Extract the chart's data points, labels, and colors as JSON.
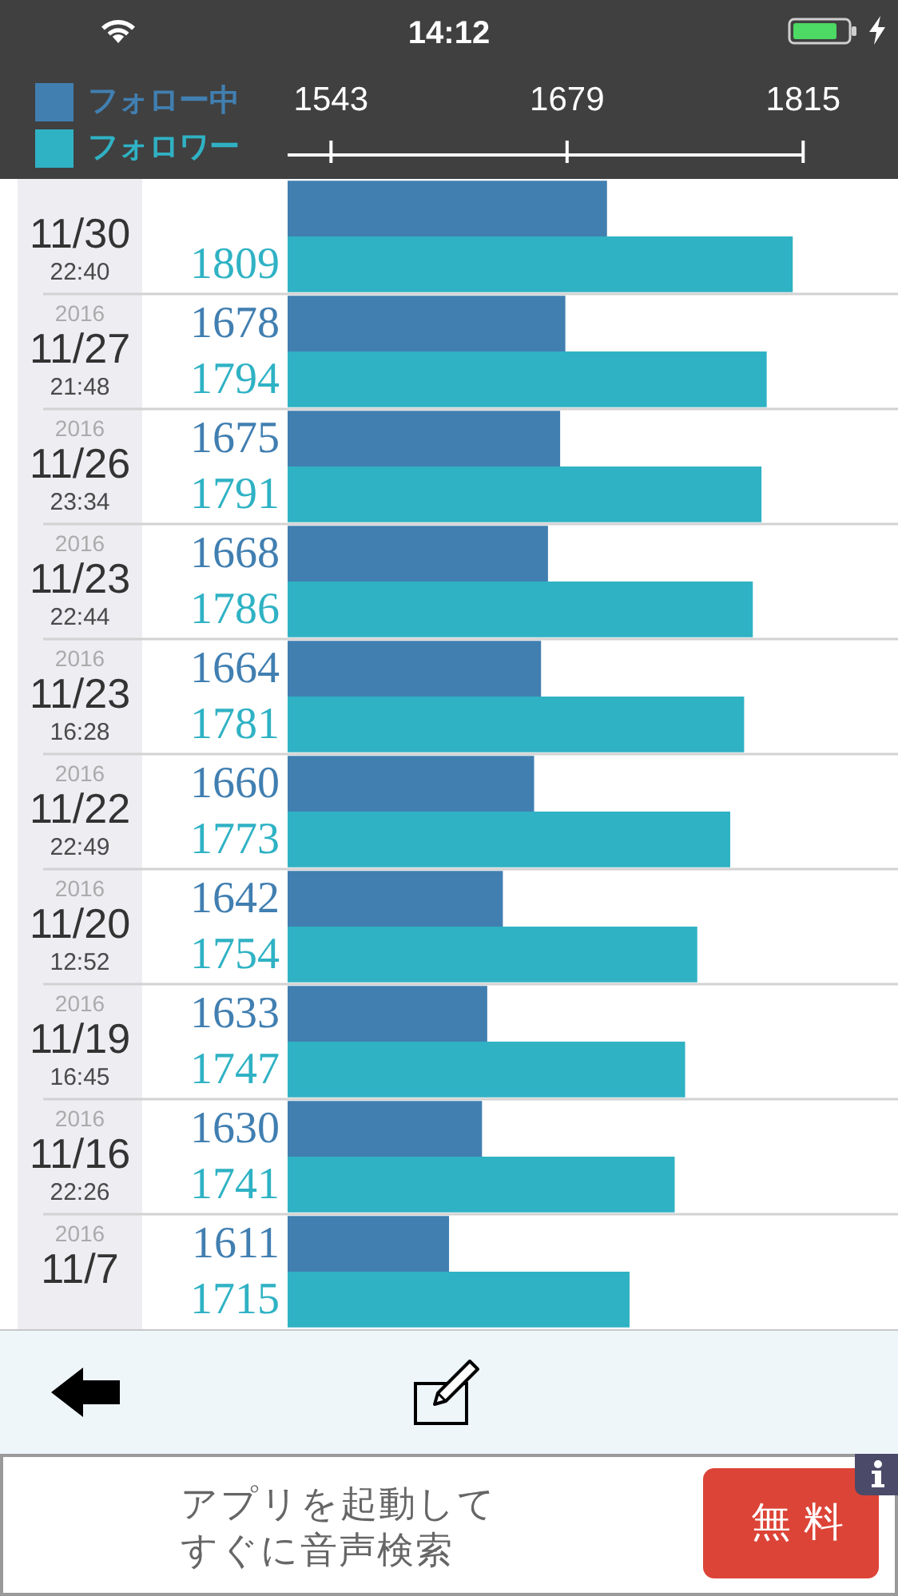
{
  "chart_data": {
    "type": "bar",
    "orientation": "horizontal",
    "categories": [
      "\n11/30\n22:40",
      "2016\n11/27\n21:48",
      "2016\n11/26\n23:34",
      "2016\n11/23\n22:44",
      "2016\n11/23\n16:28",
      "2016\n11/22\n22:49",
      "2016\n11/20\n12:52",
      "2016\n11/19\n16:45",
      "2016\n11/16\n22:26",
      "2016\n11/7\n"
    ],
    "series": [
      {
        "name": "フォロー中",
        "color": "#417fb1",
        "values": [
          1702,
          1678,
          1675,
          1668,
          1664,
          1660,
          1642,
          1633,
          1630,
          1611
        ],
        "value_labels": [
          null,
          "1678",
          "1675",
          "1668",
          "1664",
          "1660",
          "1642",
          "1633",
          "1630",
          "1611"
        ]
      },
      {
        "name": "フォロワー",
        "color": "#2fb2c4",
        "values": [
          1809,
          1794,
          1791,
          1786,
          1781,
          1773,
          1754,
          1747,
          1741,
          1715
        ],
        "value_labels": [
          "1809",
          "1794",
          "1791",
          "1786",
          "1781",
          "1773",
          "1754",
          "1747",
          "1741",
          "1715"
        ]
      }
    ],
    "xlim": [
      1518,
      1815
    ],
    "xticks": [
      1543,
      1679,
      1815
    ],
    "grid": "y",
    "legend": "top left",
    "annotations": [
      "14:12",
      "アプリを起動して",
      "すぐに音声検索",
      "無料"
    ]
  }
}
